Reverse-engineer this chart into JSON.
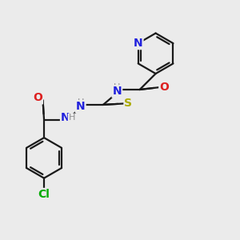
{
  "bg_color": "#ebebeb",
  "bond_color": "#1a1a1a",
  "N_color": "#2020dd",
  "O_color": "#dd2020",
  "S_color": "#aaaa00",
  "Cl_color": "#00aa00",
  "H_color": "#909090",
  "line_width": 1.6,
  "figsize": [
    3.0,
    3.0
  ],
  "dpi": 100,
  "xlim": [
    0,
    10
  ],
  "ylim": [
    0,
    10
  ]
}
